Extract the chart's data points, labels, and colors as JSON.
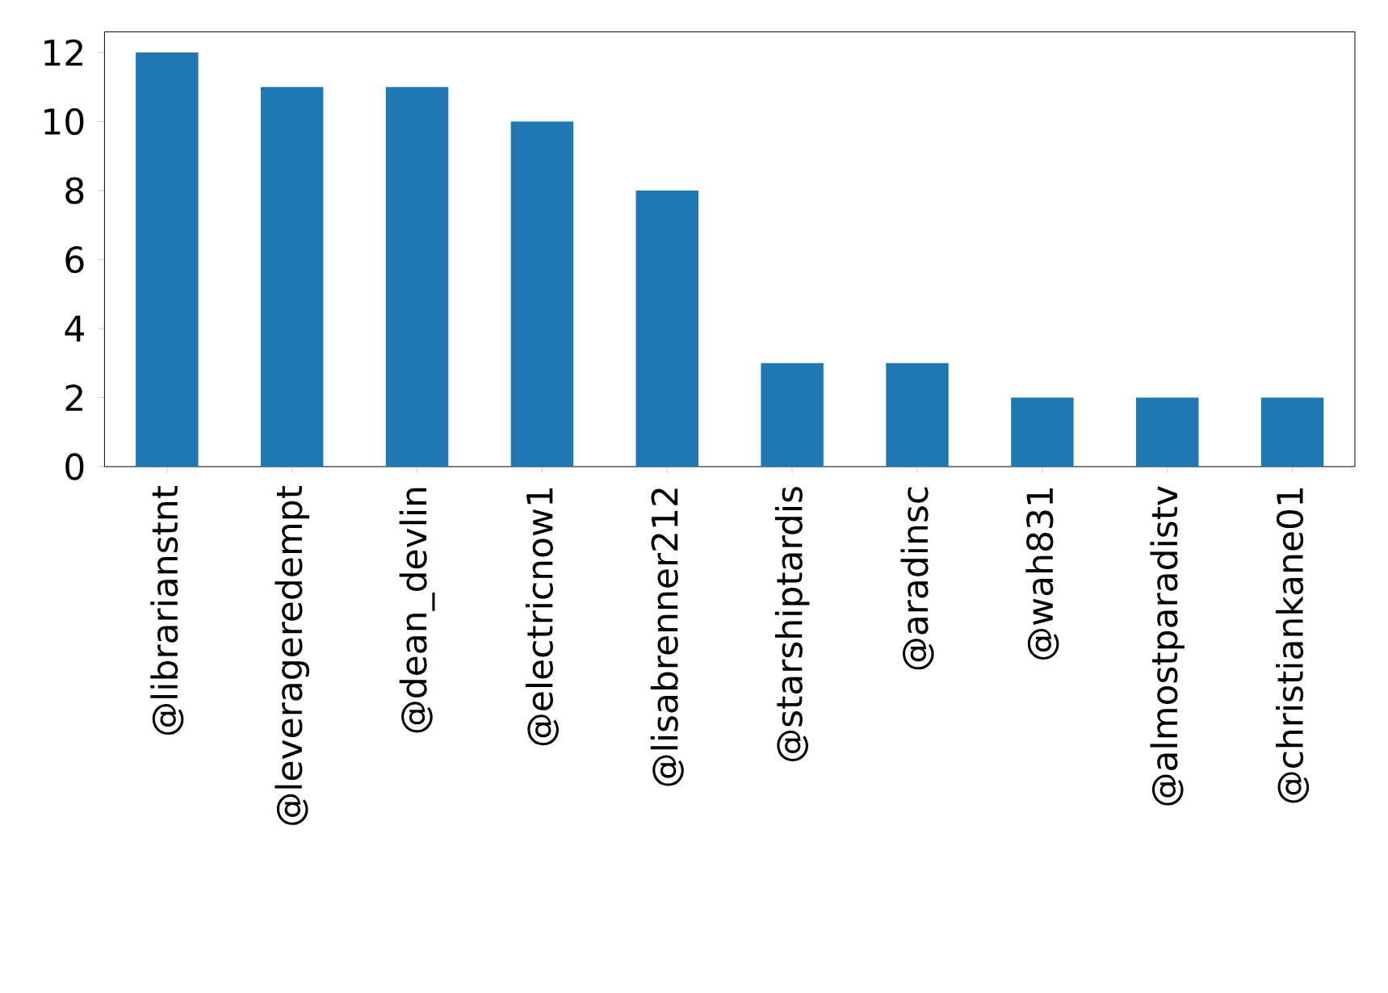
{
  "chart_data": {
    "type": "bar",
    "categories": [
      "@librarianstnt",
      "@leverageredempt",
      "@dean_devlin",
      "@electricnow1",
      "@lisabrenner212",
      "@starshiptardis",
      "@aradinsc",
      "@wah831",
      "@almostparadistv",
      "@christiankane01"
    ],
    "values": [
      12,
      11,
      11,
      10,
      8,
      3,
      3,
      2,
      2,
      2
    ],
    "color": "#1f77b4",
    "ylim": [
      0,
      12.6
    ],
    "yticks": [
      0,
      2,
      4,
      6,
      8,
      10,
      12
    ]
  }
}
